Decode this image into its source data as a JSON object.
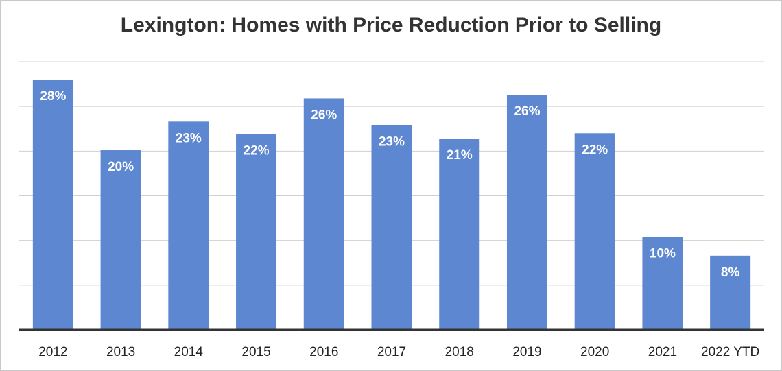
{
  "chart_data": {
    "type": "bar",
    "title": "Lexington: Homes with Price Reduction Prior to Selling",
    "xlabel": "",
    "ylabel": "",
    "categories": [
      "2012",
      "2013",
      "2014",
      "2015",
      "2016",
      "2017",
      "2018",
      "2019",
      "2020",
      "2021",
      "2022 YTD"
    ],
    "values": [
      28,
      20,
      23,
      22,
      26,
      23,
      21,
      26,
      22,
      10,
      8
    ],
    "value_precision": [
      28.0,
      20.1,
      23.3,
      21.9,
      25.9,
      22.9,
      21.4,
      26.3,
      22.0,
      10.4,
      8.3
    ],
    "data_labels": [
      "28%",
      "20%",
      "23%",
      "22%",
      "26%",
      "23%",
      "21%",
      "26%",
      "22%",
      "10%",
      "8%"
    ],
    "ylim": [
      0,
      30
    ],
    "grid": true,
    "legend": "none",
    "colors": {
      "bar": "#5d87d0",
      "grid": "#d0d0d0",
      "axis": "#333333",
      "title": "#333333"
    }
  }
}
